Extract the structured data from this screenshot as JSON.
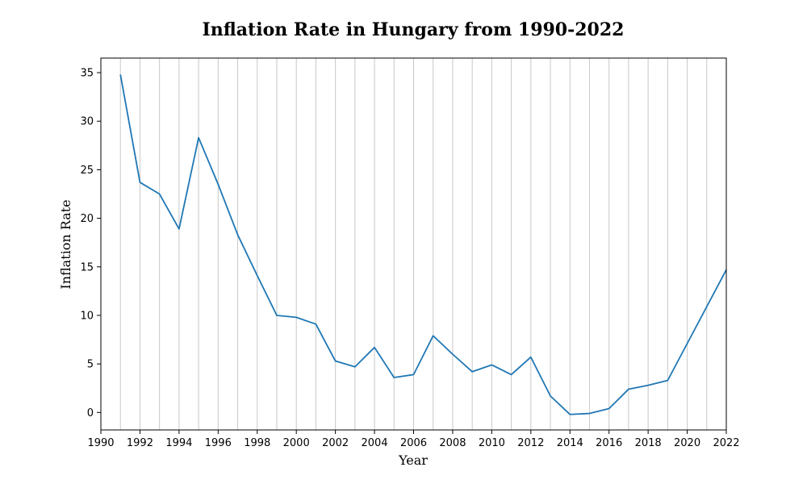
{
  "chart_data": {
    "type": "line",
    "title": "Inflation Rate in Hungary from 1990-2022",
    "xlabel": "Year",
    "ylabel": "Inflation Rate",
    "xlim": [
      1990,
      2022
    ],
    "ylim": [
      -1.8,
      36.5
    ],
    "x_ticks": [
      1990,
      1992,
      1994,
      1996,
      1998,
      2000,
      2002,
      2004,
      2006,
      2008,
      2010,
      2012,
      2014,
      2016,
      2018,
      2020,
      2022
    ],
    "y_ticks": [
      0,
      5,
      10,
      15,
      20,
      25,
      30,
      35
    ],
    "grid": "vertical, every year",
    "series": [
      {
        "color": "#1f77b4",
        "x": [
          1991,
          1992,
          1993,
          1994,
          1995,
          1996,
          1997,
          1998,
          1999,
          2000,
          2001,
          2002,
          2003,
          2004,
          2005,
          2006,
          2007,
          2008,
          2009,
          2010,
          2011,
          2012,
          2013,
          2014,
          2015,
          2016,
          2017,
          2018,
          2019,
          2020,
          2021,
          2022
        ],
        "y": [
          34.8,
          23.7,
          22.5,
          18.9,
          28.3,
          23.5,
          18.3,
          14.1,
          10.0,
          9.8,
          9.1,
          5.3,
          4.7,
          6.7,
          3.6,
          3.9,
          7.9,
          6.0,
          4.2,
          4.9,
          3.9,
          5.7,
          1.7,
          -0.2,
          -0.1,
          0.4,
          2.4,
          2.8,
          3.3,
          7.1,
          10.9,
          14.7
        ]
      }
    ]
  }
}
